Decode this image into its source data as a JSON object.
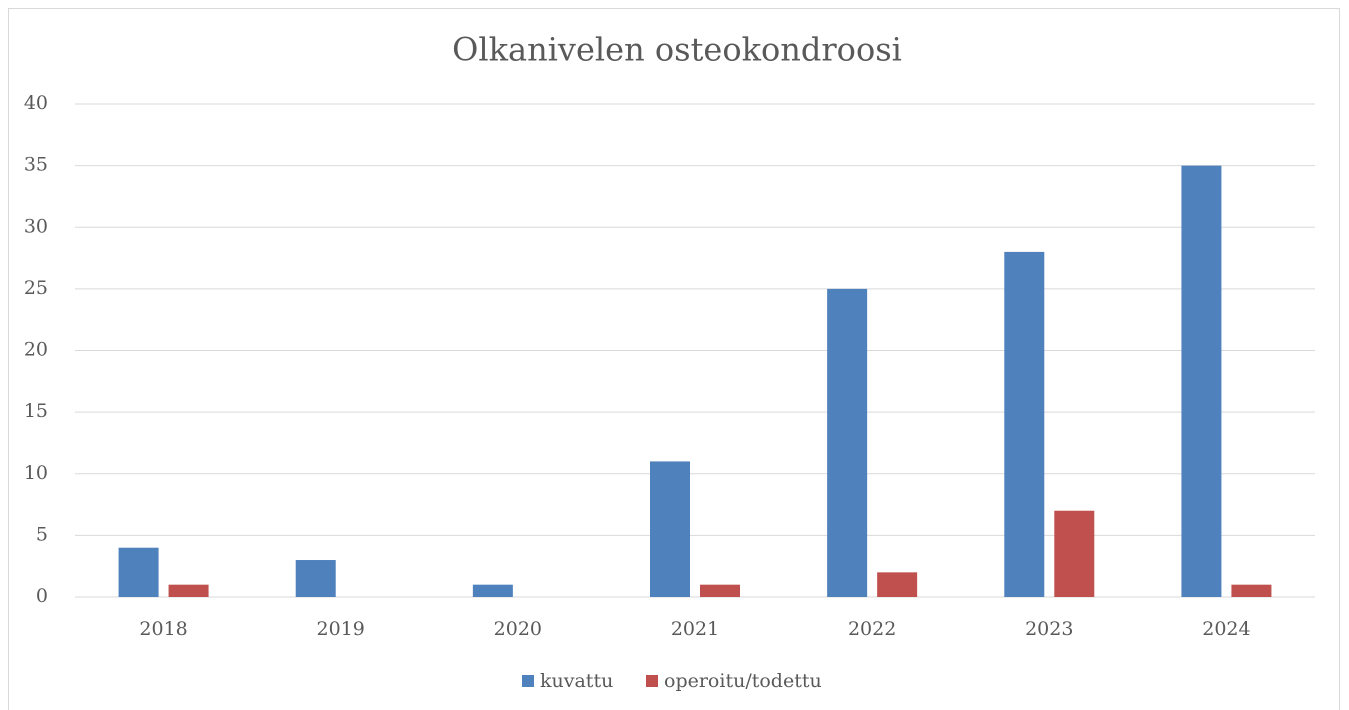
{
  "chart_data": {
    "type": "bar",
    "title": "Olkanivelen osteokondroosi",
    "categories": [
      "2018",
      "2019",
      "2020",
      "2021",
      "2022",
      "2023",
      "2024"
    ],
    "series": [
      {
        "name": "kuvattu",
        "color": "#4f81bd",
        "values": [
          4,
          3,
          1,
          11,
          25,
          28,
          35
        ]
      },
      {
        "name": "operoitu/todettu",
        "color": "#c0504d",
        "values": [
          1,
          0,
          0,
          1,
          2,
          7,
          1
        ]
      }
    ],
    "ylim": [
      0,
      40
    ],
    "yticks": [
      0,
      5,
      10,
      15,
      20,
      25,
      30,
      35,
      40
    ],
    "grid": true,
    "legend": "bottom"
  }
}
